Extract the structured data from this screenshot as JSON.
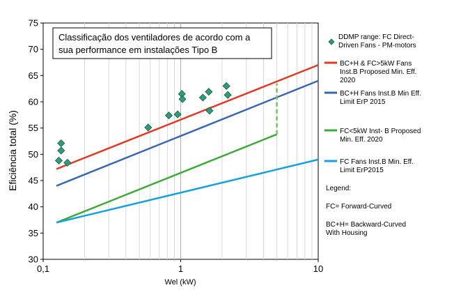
{
  "chart_data": {
    "type": "line",
    "title_box": [
      "Classificação dos ventiladores de acordo com a",
      "sua performance em instalações Tipo B"
    ],
    "xlabel": "Wel (kW)",
    "ylabel": "Eficiência total (%)",
    "x_scale": "log",
    "xlim": [
      0.1,
      10
    ],
    "ylim": [
      30,
      75
    ],
    "x_ticks": [
      0.1,
      1,
      10
    ],
    "x_tick_labels": [
      "0,1",
      "1",
      "10"
    ],
    "y_ticks": [
      30,
      35,
      40,
      45,
      50,
      55,
      60,
      65,
      70,
      75
    ],
    "y_tick_labels": [
      "30",
      "35",
      "40",
      "45",
      "50",
      "55",
      "60",
      "65",
      "70",
      "75"
    ],
    "grid": "vertical log minor lines",
    "legend_placement": "right",
    "colors": {
      "ddmp": "#2e9c7c",
      "red": "#e03a24",
      "darkblue": "#3a68b0",
      "green": "#3eaa3a",
      "lightblue": "#16a0dc",
      "dashed": "#7cc060"
    },
    "scatter": {
      "name_lines": [
        "DDMP range: FC Direct-",
        "Driven Fans - PM-motors"
      ],
      "points": [
        {
          "x": 0.13,
          "y": 48.8
        },
        {
          "x": 0.135,
          "y": 52.1
        },
        {
          "x": 0.135,
          "y": 50.7
        },
        {
          "x": 0.15,
          "y": 48.4
        },
        {
          "x": 0.58,
          "y": 55.1
        },
        {
          "x": 0.82,
          "y": 57.4
        },
        {
          "x": 0.95,
          "y": 57.6
        },
        {
          "x": 1.02,
          "y": 61.5
        },
        {
          "x": 1.03,
          "y": 60.5
        },
        {
          "x": 1.45,
          "y": 60.8
        },
        {
          "x": 1.6,
          "y": 61.9
        },
        {
          "x": 1.62,
          "y": 58.3
        },
        {
          "x": 2.15,
          "y": 63.0
        },
        {
          "x": 2.2,
          "y": 61.3
        }
      ]
    },
    "series": [
      {
        "name_lines": [
          "BC+H & FC>5kW Fans",
          "Inst.B Proposed Min. Eff.",
          "2020"
        ],
        "color_key": "red",
        "x": [
          0.125,
          10
        ],
        "y": [
          47.2,
          67.0
        ]
      },
      {
        "name_lines": [
          "BC+H Fans Inst.B Min Eff.",
          "Limit ErP 2015"
        ],
        "color_key": "darkblue",
        "x": [
          0.125,
          10
        ],
        "y": [
          44.0,
          64.0
        ]
      },
      {
        "name_lines": [
          "FC<5kW Inst- B Proposed",
          "Min. Eff. 2020"
        ],
        "color_key": "green",
        "x": [
          0.125,
          5
        ],
        "y": [
          37.0,
          53.8
        ]
      },
      {
        "name_lines": [
          "FC Fans Inst.B Min. Eff.",
          "Limit ErP2015"
        ],
        "color_key": "lightblue",
        "x": [
          0.125,
          10
        ],
        "y": [
          37.0,
          49.0
        ]
      }
    ],
    "dashed_line": {
      "x": [
        5,
        5
      ],
      "y": [
        53.8,
        63.5
      ]
    },
    "notes": [
      [
        "Legend:"
      ],
      [
        "FC= Forward-Curved"
      ],
      [
        "BC+H= Backward-Curved",
        "With Housing"
      ]
    ]
  }
}
